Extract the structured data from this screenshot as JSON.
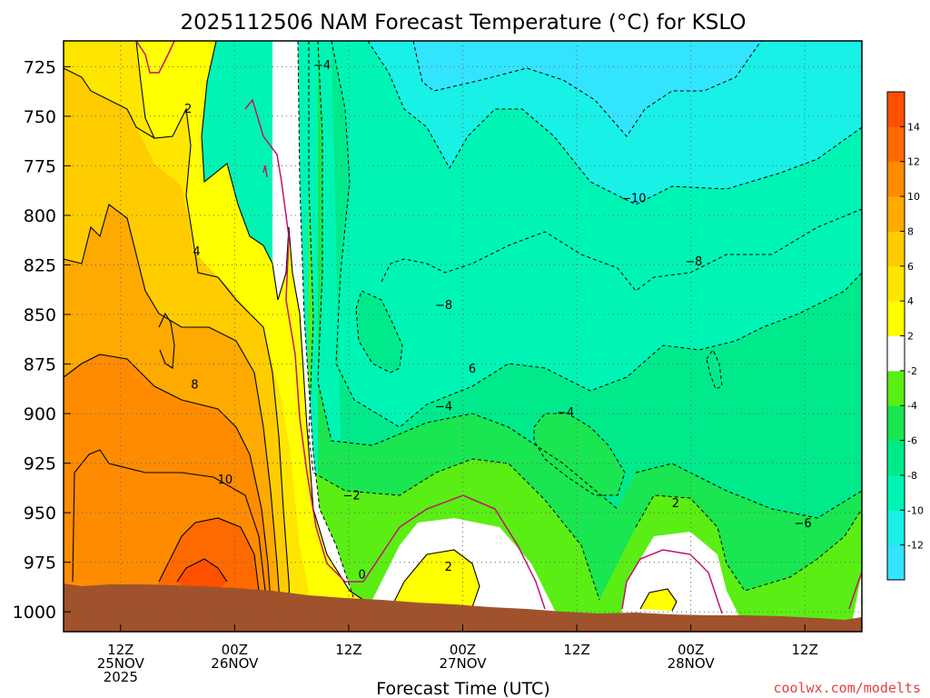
{
  "chart_data": {
    "type": "contour",
    "title": "2025112506 NAM Forecast Temperature (°C) for KSLO",
    "xlabel": "Forecast Time (UTC)",
    "ylabel": "",
    "credit": "coolwx.com/modelts",
    "y_axis": {
      "unit": "hPa",
      "range": [
        1010,
        712
      ],
      "ticks": [
        725,
        750,
        775,
        800,
        825,
        850,
        875,
        900,
        925,
        950,
        975,
        1000
      ],
      "tick_labels": [
        "725",
        "750",
        "775",
        "800",
        "825",
        "850",
        "875",
        "900",
        "925",
        "950",
        "975",
        "1000"
      ]
    },
    "x_axis": {
      "unit": "hours since 2025-11-25 06Z",
      "range": [
        0,
        84
      ],
      "ticks": [
        {
          "hour": 6,
          "line1": "12Z",
          "line2": "25NOV",
          "line3": "2025"
        },
        {
          "hour": 18,
          "line1": "00Z",
          "line2": "26NOV",
          "line3": ""
        },
        {
          "hour": 30,
          "line1": "12Z",
          "line2": "",
          "line3": ""
        },
        {
          "hour": 42,
          "line1": "00Z",
          "line2": "27NOV",
          "line3": ""
        },
        {
          "hour": 54,
          "line1": "12Z",
          "line2": "",
          "line3": ""
        },
        {
          "hour": 66,
          "line1": "00Z",
          "line2": "28NOV",
          "line3": ""
        },
        {
          "hour": 78,
          "line1": "12Z",
          "line2": "",
          "line3": ""
        }
      ]
    },
    "colorbar": {
      "boundaries": [
        -12,
        -10,
        -8,
        -6,
        -4,
        -2,
        2,
        4,
        6,
        8,
        10,
        12,
        14
      ],
      "labels": [
        "-12",
        "-10",
        "-8",
        "-6",
        "-4",
        "-2",
        "2",
        "4",
        "6",
        "8",
        "10",
        "12",
        "14"
      ],
      "colors": [
        "#33e4ff",
        "#19f0e6",
        "#00f5b4",
        "#00ea8c",
        "#19e650",
        "#5aee14",
        "#ffffff",
        "#ffff00",
        "#ffe600",
        "#ffcc00",
        "#ffaa00",
        "#ff8c00",
        "#ff6a00",
        "#ff5000"
      ]
    },
    "contour_labels": [
      {
        "text": "−4",
        "hour": 27.2,
        "p": 724
      },
      {
        "text": "2",
        "hour": 13.1,
        "p": 746
      },
      {
        "text": "4",
        "hour": 14.0,
        "p": 818
      },
      {
        "text": "−10",
        "hour": 60.0,
        "p": 791
      },
      {
        "text": "−8",
        "hour": 66.3,
        "p": 823
      },
      {
        "text": "−8",
        "hour": 40.0,
        "p": 845
      },
      {
        "text": "6",
        "hour": 43.0,
        "p": 877
      },
      {
        "text": "8",
        "hour": 13.8,
        "p": 885
      },
      {
        "text": "−4",
        "hour": 40.0,
        "p": 896
      },
      {
        "text": "−4",
        "hour": 52.8,
        "p": 899
      },
      {
        "text": "10",
        "hour": 17.0,
        "p": 933
      },
      {
        "text": "−2",
        "hour": 30.3,
        "p": 941
      },
      {
        "text": "2",
        "hour": 64.4,
        "p": 945
      },
      {
        "text": "−6",
        "hour": 77.8,
        "p": 955
      },
      {
        "text": "0",
        "hour": 31.4,
        "p": 981
      },
      {
        "text": "2",
        "hour": 40.5,
        "p": 977
      }
    ]
  }
}
